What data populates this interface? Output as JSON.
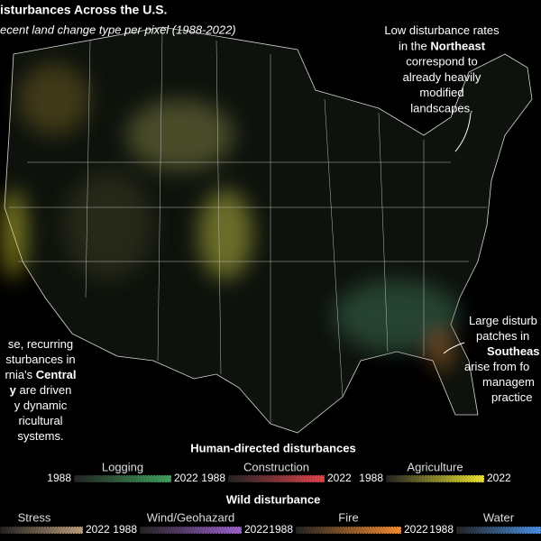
{
  "header": {
    "title": "isturbances Across the U.S.",
    "subtitle": "ecent land change type per pixel (1988-2022)"
  },
  "annotations": [
    {
      "lines": [
        [
          "Low disturbance rates"
        ],
        [
          "in the ",
          {
            "text": "Northeast",
            "bold": true
          }
        ],
        [
          "correspond to"
        ],
        [
          "already heavily"
        ],
        [
          "modified"
        ],
        [
          "landscapes."
        ]
      ]
    },
    {
      "lines": [
        [
          "se, recurring"
        ],
        [
          "sturbances in"
        ],
        [
          "rnia's ",
          {
            "text": "Central",
            "bold": true
          }
        ],
        [
          {
            "text": "y",
            "bold": true
          },
          " are driven"
        ],
        [
          "y dynamic"
        ],
        [
          "ricultural"
        ],
        [
          "systems."
        ]
      ]
    },
    {
      "lines": [
        [
          "Large disturb"
        ],
        [
          "patches in"
        ],
        [
          {
            "text": "Southeas",
            "bold": true
          }
        ],
        [
          "arise from fo"
        ],
        [
          "managem"
        ],
        [
          "practice"
        ]
      ]
    }
  ],
  "legend": [
    {
      "heading": "Human-directed disturbances",
      "items": [
        {
          "name": "Logging",
          "color": "#3fa05a",
          "start": "1988",
          "end": "2022"
        },
        {
          "name": "Construction",
          "color": "#e0434a",
          "start": "1988",
          "end": "2022"
        },
        {
          "name": "Agriculture",
          "color": "#e8e030",
          "start": "1988",
          "end": "2022"
        }
      ]
    },
    {
      "heading": "Wild disturbance",
      "items": [
        {
          "name": "Stress",
          "color": "#b89a78",
          "end": "2022"
        },
        {
          "name": "Wind/Geohazard",
          "color": "#9a5fc8",
          "start": "1988",
          "end": "2022"
        },
        {
          "name": "Fire",
          "color": "#f08a30",
          "start": "1988",
          "end": "2022"
        },
        {
          "name": "Water",
          "color": "#4a8ee0",
          "start": "1988"
        }
      ]
    }
  ]
}
